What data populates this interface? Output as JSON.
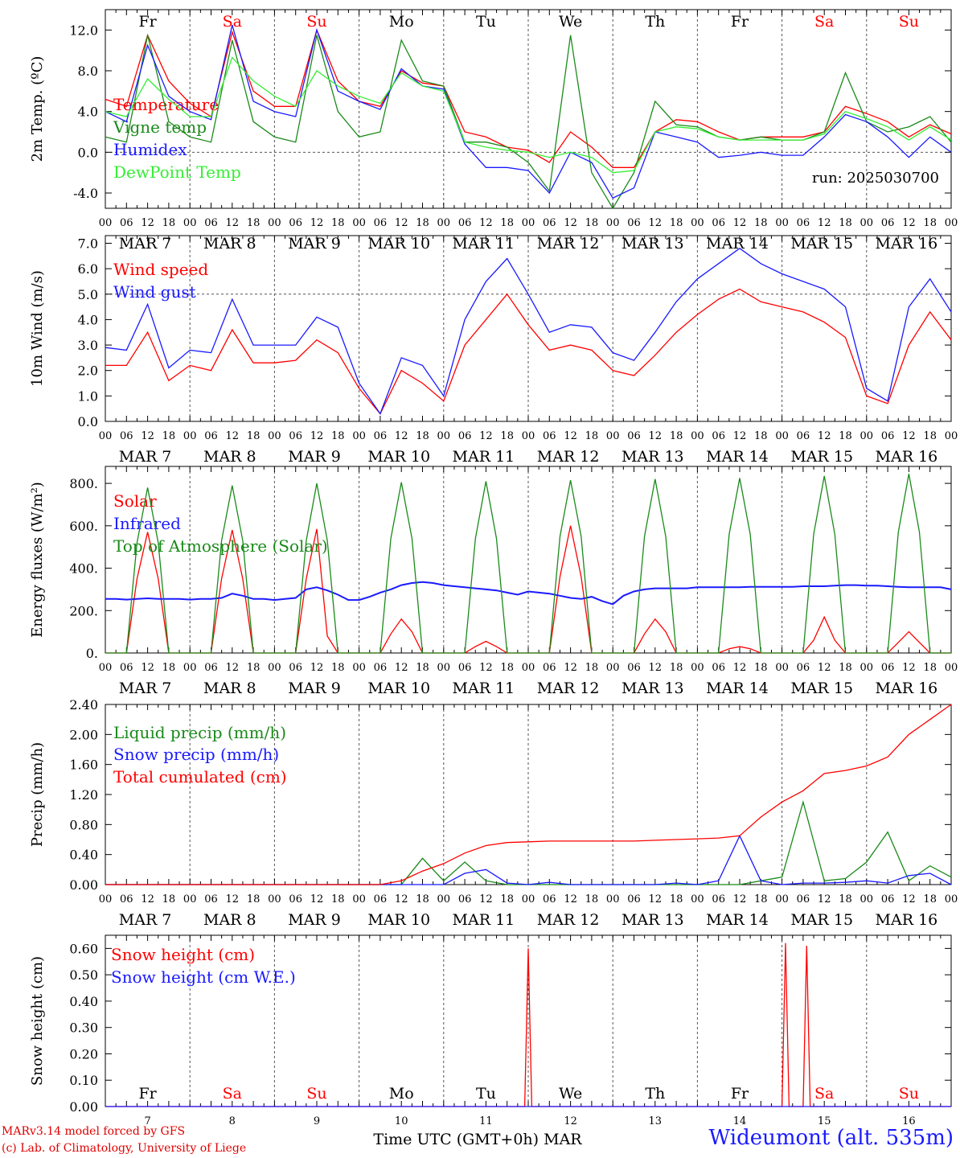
{
  "colors": {
    "red": "#ff0000",
    "green": "#1a8a1a",
    "blue": "#1a1aff",
    "lightgreen": "#33ee33",
    "black": "#000000"
  },
  "day_names": [
    "Fr",
    "Sa",
    "Su",
    "Mo",
    "Tu",
    "We",
    "Th",
    "Fr",
    "Sa",
    "Su"
  ],
  "weekend_flags": [
    false,
    true,
    true,
    false,
    false,
    false,
    false,
    false,
    true,
    true
  ],
  "date_labels": [
    "MAR  7",
    "MAR  8",
    "MAR  9",
    "MAR 10",
    "MAR 11",
    "MAR 12",
    "MAR 13",
    "MAR 14",
    "MAR 15",
    "MAR 16"
  ],
  "hour_ticks": [
    "00",
    "06",
    "12",
    "18"
  ],
  "bottom_day_numbers": [
    "7",
    "8",
    "9",
    "10",
    "11",
    "12",
    "13",
    "14",
    "15",
    "16"
  ],
  "footer": {
    "model": "MARv3.14 model forced by GFS",
    "lab": "(c) Lab. of Climatology, University of Liege",
    "xlabel": "Time UTC (GMT+0h) MAR",
    "station": "Wideumont (alt. 535m)"
  },
  "chart_data": [
    {
      "type": "line",
      "ylabel": "2m Temp. (ºC)",
      "ylim": [
        -5.5,
        14
      ],
      "yticks": [
        -4,
        0,
        4,
        8,
        12
      ],
      "ytick_labels": [
        "-4.0",
        "0.0",
        "4.0",
        "8.0",
        "12.0"
      ],
      "hline": 0,
      "annotation": "run: 2025030700",
      "x_hours": [
        0,
        6,
        12,
        18,
        24,
        30,
        36,
        42,
        48,
        54,
        60,
        66,
        72,
        78,
        84,
        90,
        96,
        102,
        108,
        114,
        120,
        126,
        132,
        138,
        144,
        150,
        156,
        162,
        168,
        174,
        180,
        186,
        192,
        198,
        204,
        210,
        216,
        222,
        228,
        234,
        240
      ],
      "series": [
        {
          "name": "Temperature",
          "color": "red",
          "values": [
            5.2,
            4.5,
            11.5,
            7,
            4.8,
            3.5,
            11.8,
            6,
            4.5,
            4.5,
            12,
            7,
            5,
            4.5,
            8,
            6.8,
            6.5,
            2,
            1.5,
            0.5,
            0.2,
            -1,
            2,
            0.5,
            -1.5,
            -1.5,
            2,
            3.2,
            3,
            2,
            1.2,
            1.5,
            1.5,
            1.5,
            2,
            4.5,
            3.8,
            3,
            1.5,
            2.7,
            1.8
          ]
        },
        {
          "name": "Vigne temp",
          "color": "green",
          "values": [
            1.5,
            1,
            11.5,
            3,
            1.5,
            1,
            11,
            3,
            1.5,
            1,
            11.5,
            4,
            1.5,
            2,
            11,
            7,
            6.5,
            1,
            1,
            0.5,
            -1,
            -3.8,
            11.5,
            -2,
            -5.5,
            -2,
            5,
            2.7,
            2.5,
            1.5,
            1.2,
            1.5,
            1.2,
            1.2,
            2,
            7.8,
            3,
            2,
            2.5,
            3.5,
            1
          ]
        },
        {
          "name": "Humidex",
          "color": "blue",
          "values": [
            4,
            3,
            10.5,
            5.5,
            4,
            3.2,
            12.5,
            5,
            4,
            3.5,
            12,
            6,
            5,
            4.2,
            8.2,
            6.5,
            6.2,
            0.8,
            -1.5,
            -1.5,
            -1.8,
            -4,
            0,
            -1,
            -4.5,
            -3.5,
            2,
            1.5,
            1,
            -0.5,
            -0.3,
            0,
            -0.3,
            -0.3,
            1.5,
            3.7,
            3,
            1.5,
            -0.5,
            1.5,
            0
          ]
        },
        {
          "name": "DewPoint Temp",
          "color": "lightgreen",
          "values": [
            4,
            3.5,
            7.2,
            5.2,
            3.5,
            3.5,
            9.3,
            7,
            5.5,
            4.5,
            8,
            6.5,
            5.5,
            4.8,
            7.8,
            6.5,
            6,
            1,
            0.5,
            0.2,
            0,
            -0.5,
            0,
            -0.5,
            -2,
            -1.8,
            2,
            2.5,
            2.3,
            1.5,
            1.2,
            1.2,
            1.2,
            1.2,
            1.8,
            4,
            3.3,
            2.5,
            1.2,
            2.5,
            1.2
          ]
        }
      ]
    },
    {
      "type": "line",
      "ylabel": "10m Wind (m/s)",
      "ylim": [
        0,
        7.3
      ],
      "yticks": [
        0,
        1,
        2,
        3,
        4,
        5,
        6,
        7
      ],
      "ytick_labels": [
        "0.0",
        "1.0",
        "2.0",
        "3.0",
        "4.0",
        "5.0",
        "6.0",
        "7.0"
      ],
      "hline": 5,
      "x_hours": [
        0,
        6,
        12,
        18,
        24,
        30,
        36,
        42,
        48,
        54,
        60,
        66,
        72,
        78,
        84,
        90,
        96,
        102,
        108,
        114,
        120,
        126,
        132,
        138,
        144,
        150,
        156,
        162,
        168,
        174,
        180,
        186,
        192,
        198,
        204,
        210,
        216,
        222,
        228,
        234,
        240
      ],
      "series": [
        {
          "name": "Wind speed",
          "color": "red",
          "values": [
            2.2,
            2.2,
            3.5,
            1.6,
            2.2,
            2.0,
            3.6,
            2.3,
            2.3,
            2.4,
            3.2,
            2.7,
            1.3,
            0.3,
            2.0,
            1.5,
            0.8,
            3.0,
            4.0,
            5.0,
            3.8,
            2.8,
            3.0,
            2.8,
            2.0,
            1.8,
            2.6,
            3.5,
            4.2,
            4.8,
            5.2,
            4.7,
            4.5,
            4.3,
            3.9,
            3.3,
            1.0,
            0.7,
            3.0,
            4.3,
            3.2
          ]
        },
        {
          "name": "Wind gust",
          "color": "blue",
          "values": [
            2.9,
            2.8,
            4.6,
            2.1,
            2.8,
            2.7,
            4.8,
            3.0,
            3.0,
            3.0,
            4.1,
            3.7,
            1.5,
            0.3,
            2.5,
            2.2,
            1.0,
            4.0,
            5.5,
            6.4,
            5.0,
            3.5,
            3.8,
            3.7,
            2.7,
            2.4,
            3.5,
            4.7,
            5.6,
            6.2,
            6.8,
            6.2,
            5.8,
            5.5,
            5.2,
            4.5,
            1.3,
            0.8,
            4.5,
            5.6,
            4.3
          ]
        }
      ]
    },
    {
      "type": "line",
      "ylabel": "Energy fluxes (W/m²)",
      "ylim": [
        0,
        880
      ],
      "yticks": [
        0,
        200,
        400,
        600,
        800
      ],
      "ytick_labels": [
        "0.",
        "200.",
        "400.",
        "600.",
        "800."
      ],
      "x_hours": [
        0,
        3,
        6,
        9,
        12,
        15,
        18,
        21,
        24,
        27,
        30,
        33,
        36,
        39,
        42,
        45,
        48,
        51,
        54,
        57,
        60,
        63,
        66,
        69,
        72,
        75,
        78,
        81,
        84,
        87,
        90,
        93,
        96,
        99,
        102,
        105,
        108,
        111,
        114,
        117,
        120,
        123,
        126,
        129,
        132,
        135,
        138,
        141,
        144,
        147,
        150,
        153,
        156,
        159,
        162,
        165,
        168,
        171,
        174,
        177,
        180,
        183,
        186,
        189,
        192,
        195,
        198,
        201,
        204,
        207,
        210,
        213,
        216,
        219,
        222,
        225,
        228,
        231,
        234,
        237,
        240
      ],
      "series": [
        {
          "name": "Solar",
          "color": "red",
          "values": [
            0,
            0,
            0,
            350,
            570,
            350,
            0,
            0,
            0,
            0,
            0,
            350,
            580,
            350,
            0,
            0,
            0,
            0,
            0,
            350,
            585,
            80,
            0,
            0,
            0,
            0,
            0,
            90,
            160,
            100,
            0,
            0,
            0,
            0,
            0,
            30,
            55,
            30,
            0,
            0,
            0,
            0,
            0,
            360,
            600,
            360,
            0,
            0,
            0,
            0,
            0,
            90,
            160,
            100,
            0,
            0,
            0,
            0,
            0,
            20,
            30,
            20,
            0,
            0,
            0,
            0,
            0,
            60,
            170,
            60,
            0,
            0,
            0,
            0,
            0,
            50,
            100,
            50,
            0,
            0,
            0
          ]
        },
        {
          "name": "Infrared",
          "color": "blue",
          "values": [
            255,
            255,
            252,
            255,
            258,
            255,
            255,
            255,
            252,
            255,
            255,
            260,
            280,
            270,
            255,
            255,
            250,
            255,
            260,
            300,
            310,
            295,
            275,
            250,
            250,
            265,
            285,
            300,
            320,
            330,
            335,
            330,
            320,
            315,
            310,
            305,
            300,
            295,
            285,
            275,
            290,
            285,
            280,
            270,
            260,
            255,
            265,
            245,
            230,
            270,
            290,
            300,
            305,
            305,
            305,
            305,
            310,
            310,
            310,
            310,
            310,
            312,
            312,
            312,
            312,
            312,
            315,
            315,
            315,
            318,
            320,
            320,
            318,
            318,
            315,
            312,
            310,
            310,
            310,
            310,
            300
          ]
        },
        {
          "name": "Top of Atmosphere (Solar)",
          "color": "green",
          "values": [
            0,
            0,
            0,
            520,
            780,
            520,
            0,
            0,
            0,
            0,
            0,
            530,
            790,
            530,
            0,
            0,
            0,
            0,
            0,
            530,
            800,
            530,
            0,
            0,
            0,
            0,
            0,
            540,
            805,
            540,
            0,
            0,
            0,
            0,
            0,
            540,
            810,
            540,
            0,
            0,
            0,
            0,
            0,
            550,
            815,
            550,
            0,
            0,
            0,
            0,
            0,
            550,
            820,
            550,
            0,
            0,
            0,
            0,
            0,
            560,
            825,
            560,
            0,
            0,
            0,
            0,
            0,
            560,
            835,
            560,
            0,
            0,
            0,
            0,
            0,
            570,
            845,
            570,
            0,
            0,
            0
          ]
        }
      ]
    },
    {
      "type": "line",
      "ylabel": "Precip (mm/h)",
      "ylim": [
        0,
        2.4
      ],
      "yticks": [
        0,
        0.4,
        0.8,
        1.2,
        1.6,
        2.0,
        2.4
      ],
      "ytick_labels": [
        "0.00",
        "0.40",
        "0.80",
        "1.20",
        "1.60",
        "2.00",
        "2.40"
      ],
      "x_hours": [
        0,
        6,
        12,
        18,
        24,
        30,
        36,
        42,
        48,
        54,
        60,
        66,
        72,
        78,
        84,
        90,
        96,
        102,
        108,
        114,
        120,
        126,
        132,
        138,
        144,
        150,
        156,
        162,
        168,
        174,
        180,
        186,
        192,
        198,
        204,
        210,
        216,
        222,
        228,
        234,
        240
      ],
      "series": [
        {
          "name": "Liquid precip (mm/h)",
          "color": "green",
          "values": [
            0,
            0,
            0,
            0,
            0,
            0,
            0,
            0,
            0,
            0,
            0,
            0,
            0,
            0,
            0,
            0.35,
            0.05,
            0.3,
            0.05,
            0,
            0,
            0,
            0,
            0,
            0,
            0,
            0,
            0,
            0,
            0,
            0,
            0.05,
            0.1,
            1.1,
            0.05,
            0.08,
            0.3,
            0.7,
            0.05,
            0.25,
            0.1
          ]
        },
        {
          "name": "Snow precip (mm/h)",
          "color": "blue",
          "values": [
            0,
            0,
            0,
            0,
            0,
            0,
            0,
            0,
            0,
            0,
            0,
            0,
            0,
            0,
            0,
            0,
            0,
            0.15,
            0.2,
            0.02,
            0,
            0.03,
            0,
            0,
            0,
            0,
            0,
            0.02,
            0,
            0.05,
            0.65,
            0.05,
            0,
            0.02,
            0.02,
            0.03,
            0.05,
            0.02,
            0.12,
            0.15,
            0
          ]
        },
        {
          "name": "Total cumulated (cm)",
          "color": "red",
          "values": [
            0,
            0,
            0,
            0,
            0,
            0,
            0,
            0,
            0,
            0,
            0,
            0,
            0,
            0,
            0.05,
            0.18,
            0.28,
            0.42,
            0.52,
            0.56,
            0.57,
            0.58,
            0.58,
            0.58,
            0.58,
            0.58,
            0.59,
            0.6,
            0.61,
            0.62,
            0.65,
            0.9,
            1.1,
            1.25,
            1.48,
            1.52,
            1.58,
            1.7,
            2.0,
            2.2,
            2.4
          ]
        }
      ]
    },
    {
      "type": "line",
      "ylabel": "Snow height (cm)",
      "ylim": [
        0,
        0.65
      ],
      "yticks": [
        0,
        0.1,
        0.2,
        0.3,
        0.4,
        0.5,
        0.6
      ],
      "ytick_labels": [
        "0.00",
        "0.10",
        "0.20",
        "0.30",
        "0.40",
        "0.50",
        "0.60"
      ],
      "x_hours": [
        0,
        119,
        120,
        121,
        192,
        193,
        194,
        198,
        199,
        200,
        240
      ],
      "series": [
        {
          "name": "Snow height (cm)",
          "color": "red",
          "values": [
            0,
            0,
            0.6,
            0,
            0,
            0.62,
            0,
            0,
            0.61,
            0,
            0
          ]
        },
        {
          "name": "Snow height (cm W.E.)",
          "color": "blue",
          "values": [
            0,
            0,
            0,
            0,
            0,
            0,
            0,
            0,
            0,
            0,
            0
          ]
        }
      ]
    }
  ]
}
